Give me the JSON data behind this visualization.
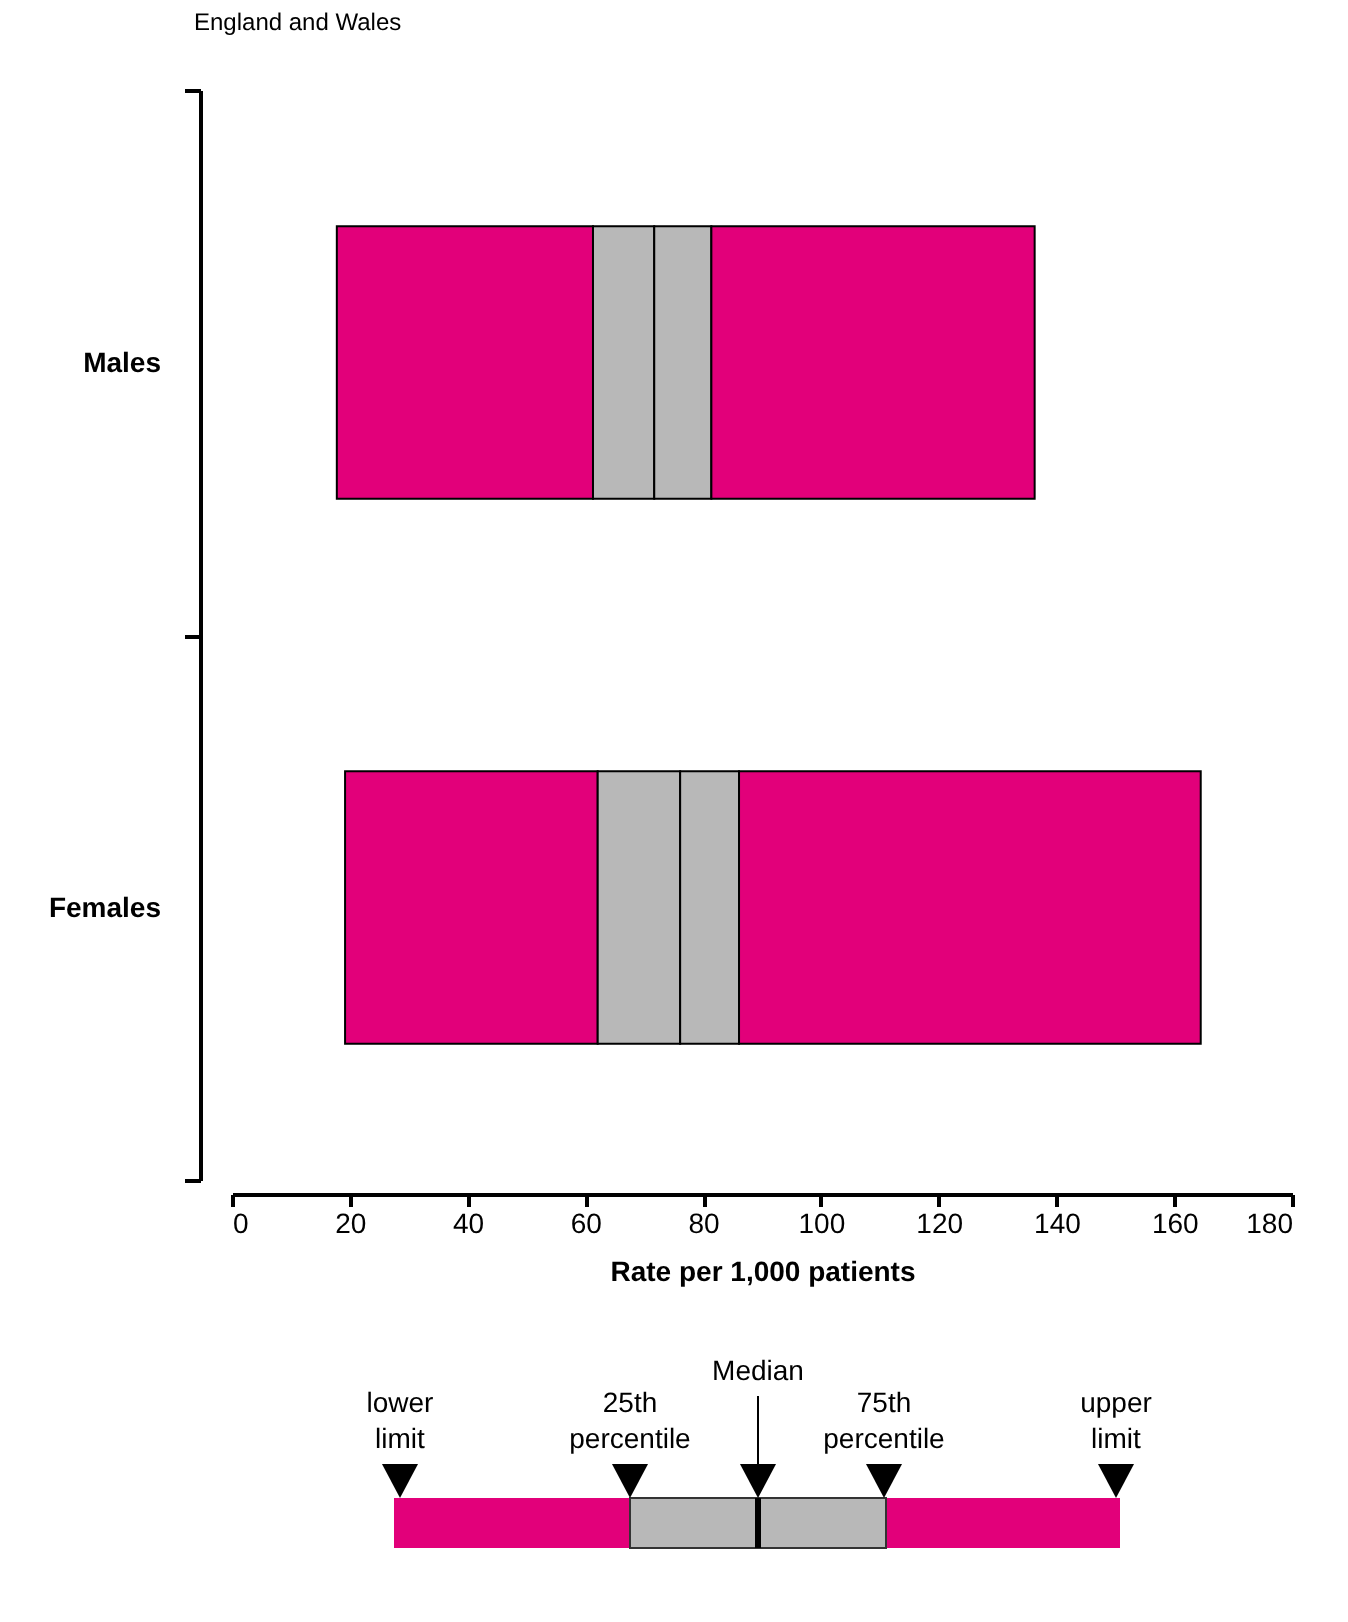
{
  "chart_data": {
    "type": "bar",
    "orientation": "horizontal",
    "title": "England and Wales",
    "xlabel": "Rate per 1,000 patients",
    "categories": [
      "Males",
      "Females"
    ],
    "series": [
      {
        "color": "#e2007a",
        "base": [
          17.8,
          19.2
        ],
        "values": [
          43.5,
          42.9
        ]
      },
      {
        "color": "#b8b8b8",
        "base": [
          61.3,
          62.1
        ],
        "values": [
          10.4,
          14.0
        ]
      },
      {
        "color": "#b8b8b8",
        "base": [
          71.7,
          76.1
        ],
        "values": [
          9.7,
          10.0
        ]
      },
      {
        "color": "#e2007a",
        "base": [
          81.4,
          86.1
        ],
        "values": [
          54.9,
          78.4
        ]
      }
    ],
    "xlim": [
      0,
      180
    ],
    "xticks": [
      0,
      20,
      40,
      60,
      80,
      100,
      120,
      140,
      160,
      180
    ],
    "grid": false,
    "annotations": [
      "lower limit",
      "25th percentile",
      "Median",
      "75th percentile",
      "upper limit"
    ]
  }
}
